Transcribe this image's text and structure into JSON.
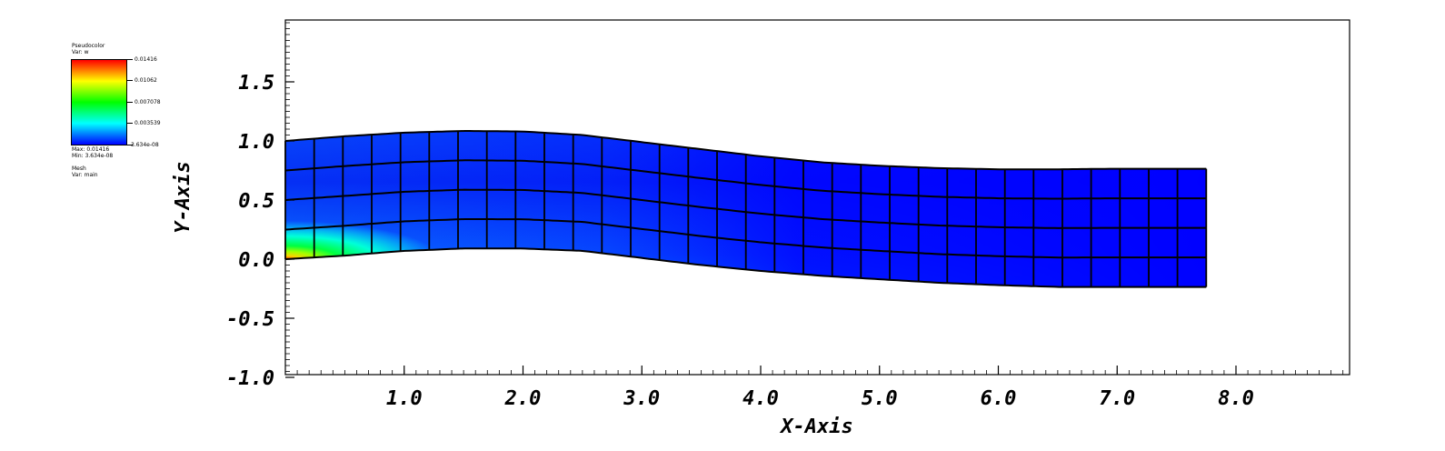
{
  "legend": {
    "plot_title": "Pseudocolor",
    "var_label": "Var: w",
    "ticks": [
      "0.01416",
      "0.01062",
      "0.007078",
      "0.003539",
      "3.634e-08"
    ],
    "max_label": "Max: 0.01416",
    "min_label": "Min: 3.634e-08",
    "mesh_title": "Mesh",
    "mesh_var": "Var: main",
    "colormap": [
      "#0000ff",
      "#00ffff",
      "#00ff00",
      "#ffff00",
      "#ff0000"
    ]
  },
  "chart_data": {
    "type": "heatmap",
    "title": "",
    "xlabel": "X-Axis",
    "ylabel": "Y-Axis",
    "xlim": [
      0,
      9.0
    ],
    "ylim": [
      -1.0,
      2.0
    ],
    "x_ticks": [
      "1.0",
      "2.0",
      "3.0",
      "4.0",
      "5.0",
      "6.0",
      "7.0",
      "8.0"
    ],
    "y_ticks": [
      "-1.0",
      "-0.5",
      "0.0",
      "0.5",
      "1.0",
      "1.5"
    ],
    "variable": "w",
    "value_range": [
      3.634e-08,
      0.01416
    ],
    "mesh": {
      "columns": 32,
      "rows": 4,
      "x_start": 0.0,
      "x_end": 7.75,
      "bottom_edge": [
        [
          0.0,
          0.0
        ],
        [
          0.5,
          0.03
        ],
        [
          1.0,
          0.07
        ],
        [
          1.5,
          0.09
        ],
        [
          2.0,
          0.09
        ],
        [
          2.5,
          0.07
        ],
        [
          3.0,
          0.01
        ],
        [
          3.5,
          -0.05
        ],
        [
          4.0,
          -0.1
        ],
        [
          4.5,
          -0.14
        ],
        [
          5.0,
          -0.17
        ],
        [
          5.5,
          -0.2
        ],
        [
          6.0,
          -0.22
        ],
        [
          6.5,
          -0.235
        ],
        [
          7.0,
          -0.235
        ],
        [
          7.75,
          -0.235
        ]
      ],
      "top_edge": [
        [
          0.0,
          1.0
        ],
        [
          0.5,
          1.04
        ],
        [
          1.0,
          1.07
        ],
        [
          1.5,
          1.085
        ],
        [
          2.0,
          1.08
        ],
        [
          2.5,
          1.05
        ],
        [
          3.0,
          0.99
        ],
        [
          3.5,
          0.93
        ],
        [
          4.0,
          0.87
        ],
        [
          4.5,
          0.82
        ],
        [
          5.0,
          0.79
        ],
        [
          5.5,
          0.77
        ],
        [
          6.0,
          0.76
        ],
        [
          6.5,
          0.76
        ],
        [
          7.0,
          0.765
        ],
        [
          7.75,
          0.765
        ]
      ]
    },
    "field_hotspot": [
      0.0,
      0.0
    ]
  }
}
